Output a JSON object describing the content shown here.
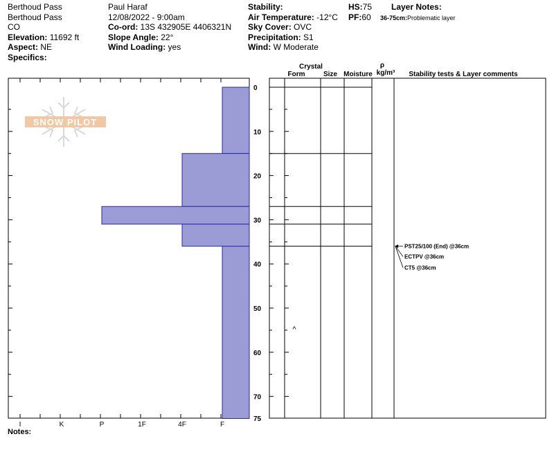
{
  "header": {
    "col1": {
      "location": "Berthoud Pass",
      "site": "Berthoud Pass",
      "state": "CO",
      "elevation_label": "Elevation:",
      "elevation_value": "11692 ft",
      "aspect_label": "Aspect:",
      "aspect_value": "NE",
      "specifics_label": "Specifics:"
    },
    "col2": {
      "observer": "Paul Haraf",
      "datetime": "12/08/2022 - 9:00am",
      "coord_label": "Co-ord:",
      "coord_value": "13S 432905E 4406321N",
      "slope_label": "Slope Angle:",
      "slope_value": "22°",
      "wind_loading_label": "Wind Loading:",
      "wind_loading_value": "yes"
    },
    "col3": {
      "stability_label": "Stability:",
      "air_temp_label": "Air Temperature:",
      "air_temp_value": "-12°C",
      "sky_label": "Sky Cover:",
      "sky_value": "OVC",
      "precip_label": "Precipitation:",
      "precip_value": "S1",
      "wind_label": "Wind:",
      "wind_value": "W Moderate"
    },
    "col4": {
      "hs_label": "HS:",
      "hs_value": "75",
      "pf_label": "PF:",
      "pf_value": "60"
    },
    "layer_notes": {
      "title": "Layer Notes:",
      "range": "36-75cm:",
      "text": "Problematic layer"
    }
  },
  "logo_text": "SNOW PILOT",
  "table_headers": {
    "crystal": "Crystal",
    "form": "Form",
    "size": "Size",
    "moisture": "Moisture",
    "rho": "ρ",
    "density_unit": "kg/m³",
    "comments": "Stability tests & Layer comments"
  },
  "notes_label": "Notes:",
  "chart_data": {
    "type": "bar",
    "orientation": "horizontal",
    "title": "",
    "x_axis": {
      "label": "",
      "categories": [
        "I",
        "K",
        "P",
        "1F",
        "4F",
        "F"
      ]
    },
    "y_axis": {
      "label": "",
      "ticks": [
        0,
        10,
        20,
        30,
        40,
        50,
        60,
        70,
        75
      ],
      "range": [
        0,
        75
      ]
    },
    "layers": [
      {
        "top": 0,
        "bottom": 15,
        "hardness": "F"
      },
      {
        "top": 15,
        "bottom": 27,
        "hardness": "4F"
      },
      {
        "top": 27,
        "bottom": 31,
        "hardness": "P"
      },
      {
        "top": 31,
        "bottom": 36,
        "hardness": "4F"
      },
      {
        "top": 36,
        "bottom": 75,
        "hardness": "F"
      }
    ],
    "layer_boundaries": [
      0,
      15,
      27,
      31,
      36
    ],
    "stability_tests": [
      "PST25/100 (End) @36cm",
      "ECTPV @36cm",
      "CT5 @36cm"
    ],
    "grain_marker": {
      "symbol": "^",
      "depth": 55
    },
    "colors": {
      "bar_fill": "#9b9bd6",
      "bar_stroke": "#2a2aa8"
    },
    "grid": false
  }
}
